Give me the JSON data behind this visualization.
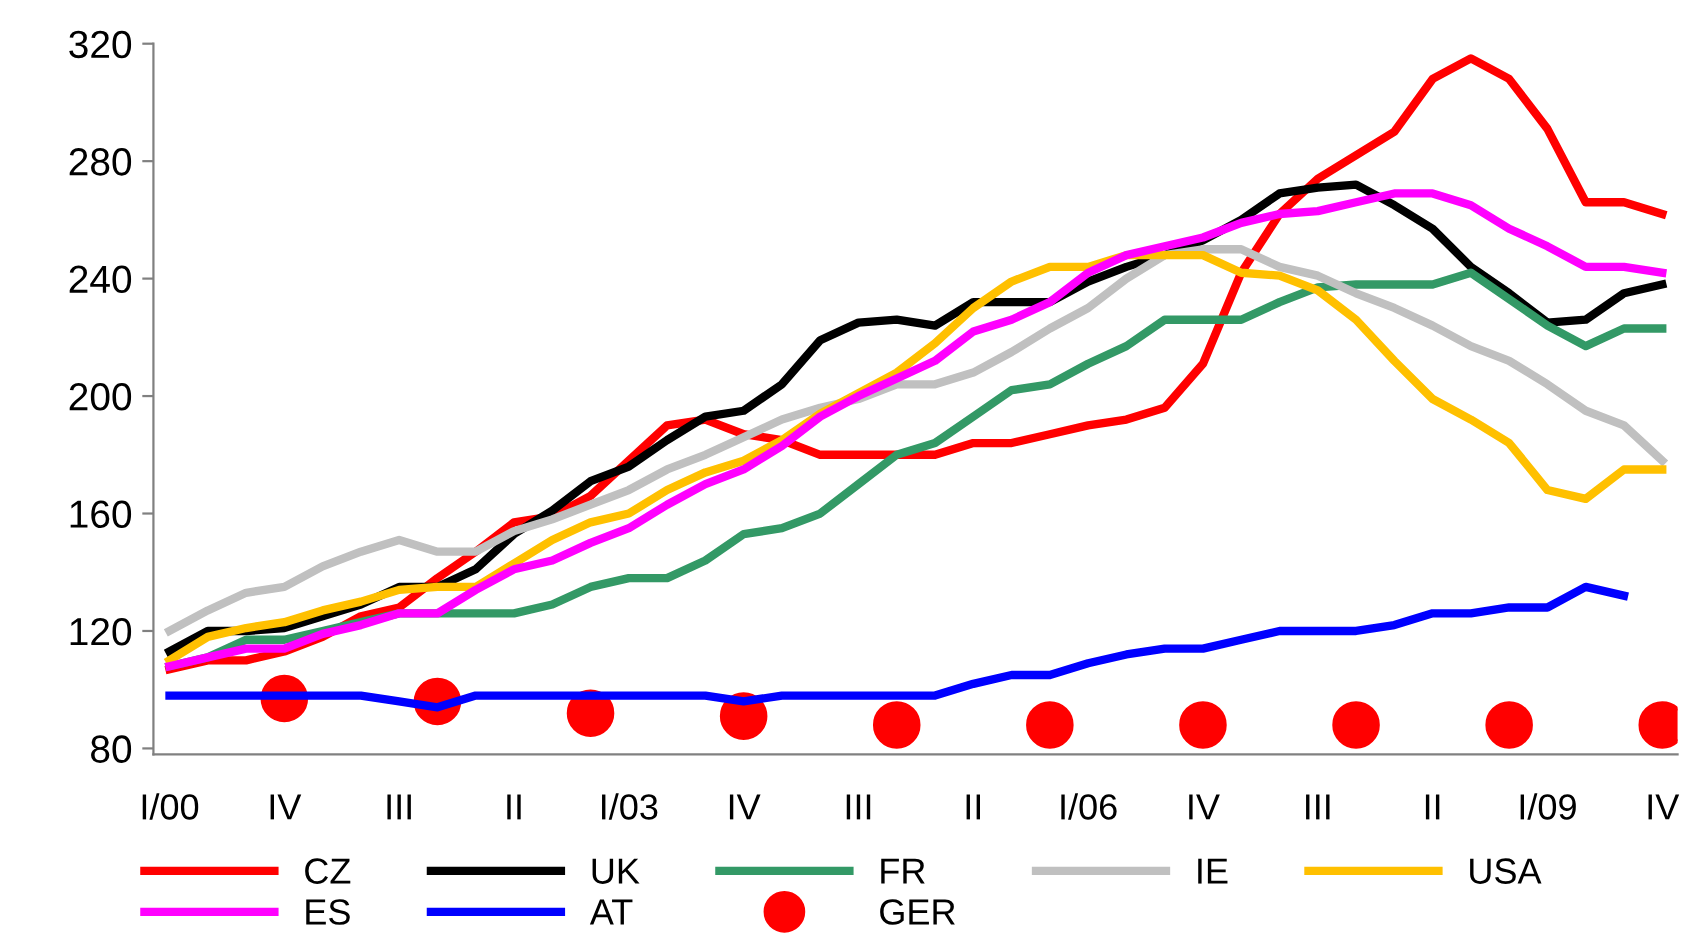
{
  "chart_data": {
    "type": "line",
    "categories": [
      "I/00",
      null,
      null,
      "IV",
      null,
      null,
      "III",
      null,
      null,
      "II",
      null,
      null,
      "I/03",
      null,
      null,
      "IV",
      null,
      null,
      "III",
      null,
      null,
      "II",
      null,
      null,
      "I/06",
      null,
      null,
      "IV",
      null,
      null,
      "III",
      null,
      null,
      "II",
      null,
      null,
      "I/09",
      null,
      null,
      "IV"
    ],
    "series": [
      {
        "name": "CZ",
        "color": "#ff0000",
        "values": [
          107,
          110,
          110,
          113,
          118,
          125,
          128,
          138,
          147,
          157,
          159,
          166,
          178,
          190,
          192,
          187,
          185,
          180,
          180,
          180,
          180,
          184,
          184,
          187,
          190,
          192,
          196,
          211,
          242,
          262,
          274,
          282,
          290,
          308,
          315,
          308,
          291,
          266,
          266,
          262
        ]
      },
      {
        "name": "UK",
        "color": "#000000",
        "values": [
          113,
          120,
          120,
          121,
          125,
          129,
          135,
          135,
          141,
          153,
          161,
          171,
          176,
          185,
          193,
          195,
          204,
          219,
          225,
          226,
          224,
          232,
          232,
          232,
          239,
          244,
          248,
          253,
          260,
          269,
          271,
          272,
          265,
          257,
          244,
          235,
          225,
          226,
          235,
          238
        ]
      },
      {
        "name": "FR",
        "color": "#339966",
        "values": [
          108,
          111,
          117,
          117,
          120,
          123,
          126,
          126,
          126,
          126,
          129,
          135,
          138,
          138,
          144,
          153,
          155,
          160,
          170,
          180,
          184,
          193,
          202,
          204,
          211,
          217,
          226,
          226,
          226,
          232,
          237,
          238,
          238,
          238,
          242,
          233,
          224,
          217,
          223,
          223
        ]
      },
      {
        "name": "IE",
        "color": "#c0c0c0",
        "values": [
          120,
          127,
          133,
          135,
          142,
          147,
          151,
          147,
          147,
          154,
          158,
          163,
          168,
          175,
          180,
          186,
          192,
          196,
          199,
          204,
          204,
          208,
          215,
          223,
          230,
          240,
          248,
          250,
          250,
          244,
          241,
          235,
          230,
          224,
          217,
          212,
          204,
          195,
          190,
          178
        ]
      },
      {
        "name": "USA",
        "color": "#ffc000",
        "values": [
          110,
          118,
          121,
          123,
          127,
          130,
          134,
          135,
          135,
          143,
          151,
          157,
          160,
          168,
          174,
          178,
          185,
          194,
          201,
          208,
          218,
          230,
          239,
          244,
          244,
          248,
          248,
          248,
          242,
          241,
          236,
          226,
          212,
          199,
          192,
          184,
          168,
          165,
          175,
          175
        ]
      },
      {
        "name": "ES",
        "color": "#ff00ff",
        "values": [
          108,
          111,
          114,
          114,
          119,
          122,
          126,
          126,
          134,
          141,
          144,
          150,
          155,
          163,
          170,
          175,
          183,
          193,
          200,
          206,
          212,
          222,
          226,
          232,
          242,
          248,
          251,
          254,
          259,
          262,
          263,
          266,
          269,
          269,
          265,
          257,
          251,
          244,
          244,
          242
        ]
      },
      {
        "name": "AT",
        "color": "#0000ff",
        "values": [
          98,
          98,
          98,
          98,
          98,
          98,
          96,
          94,
          98,
          98,
          98,
          98,
          98,
          98,
          98,
          96,
          98,
          98,
          98,
          98,
          98,
          102,
          105,
          105,
          109,
          112,
          114,
          114,
          117,
          120,
          120,
          120,
          122,
          126,
          126,
          128,
          128,
          135,
          132,
          null
        ]
      },
      {
        "name": "GER",
        "color": "#ff0000",
        "type": "scatter",
        "marker": "circle",
        "values": [
          null,
          null,
          null,
          97,
          null,
          null,
          null,
          96,
          null,
          null,
          null,
          92,
          null,
          null,
          null,
          91,
          null,
          null,
          null,
          88,
          null,
          null,
          null,
          88,
          null,
          null,
          null,
          88,
          null,
          null,
          null,
          88,
          null,
          null,
          null,
          88,
          null,
          null,
          null,
          88
        ]
      }
    ],
    "ylim": [
      78,
      320
    ],
    "yticks": [
      80,
      120,
      160,
      200,
      240,
      280,
      320
    ],
    "grid": false,
    "legend": "bottom",
    "marker": "none",
    "line_style": "solid"
  }
}
